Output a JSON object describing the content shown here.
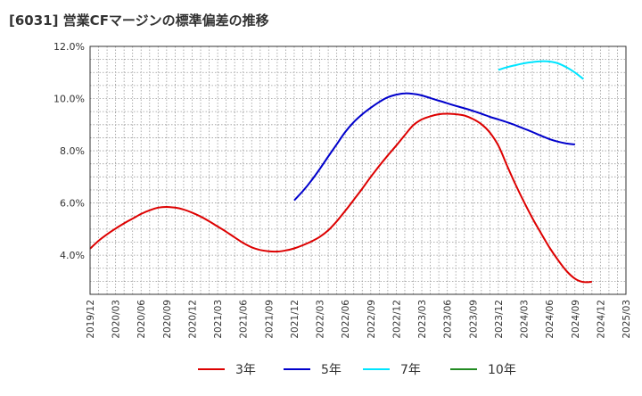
{
  "chart_data": {
    "type": "line",
    "title": "[6031]  営業CFマージンの標準偏差の推移",
    "xlabel": "",
    "ylabel": "",
    "ylim": [
      2.5,
      12.0
    ],
    "y_ticks": [
      4.0,
      6.0,
      8.0,
      10.0,
      12.0
    ],
    "y_tick_labels": [
      "4.0%",
      "6.0%",
      "8.0%",
      "10.0%",
      "12.0%"
    ],
    "x_tick_labels": [
      "2019/12",
      "2020/03",
      "2020/06",
      "2020/09",
      "2020/12",
      "2021/03",
      "2021/06",
      "2021/09",
      "2021/12",
      "2022/03",
      "2022/06",
      "2022/09",
      "2022/12",
      "2023/03",
      "2023/06",
      "2023/09",
      "2023/12",
      "2024/03",
      "2024/06",
      "2024/09",
      "2024/12",
      "2025/03"
    ],
    "grid": true,
    "legend_position": "bottom",
    "series": [
      {
        "name": "3年",
        "color": "#dd0000",
        "points": [
          [
            "2019/12",
            4.25
          ],
          [
            "2020/01",
            4.55
          ],
          [
            "2020/02",
            4.8
          ],
          [
            "2020/03",
            5.02
          ],
          [
            "2020/04",
            5.22
          ],
          [
            "2020/05",
            5.4
          ],
          [
            "2020/06",
            5.58
          ],
          [
            "2020/07",
            5.72
          ],
          [
            "2020/08",
            5.82
          ],
          [
            "2020/09",
            5.85
          ],
          [
            "2020/10",
            5.82
          ],
          [
            "2020/11",
            5.75
          ],
          [
            "2020/12",
            5.63
          ],
          [
            "2021/01",
            5.48
          ],
          [
            "2021/02",
            5.3
          ],
          [
            "2021/03",
            5.1
          ],
          [
            "2021/04",
            4.9
          ],
          [
            "2021/05",
            4.68
          ],
          [
            "2021/06",
            4.47
          ],
          [
            "2021/07",
            4.3
          ],
          [
            "2021/08",
            4.2
          ],
          [
            "2021/09",
            4.15
          ],
          [
            "2021/10",
            4.14
          ],
          [
            "2021/11",
            4.18
          ],
          [
            "2021/12",
            4.26
          ],
          [
            "2022/01",
            4.38
          ],
          [
            "2022/02",
            4.52
          ],
          [
            "2022/03",
            4.7
          ],
          [
            "2022/04",
            4.95
          ],
          [
            "2022/05",
            5.3
          ],
          [
            "2022/06",
            5.7
          ],
          [
            "2022/07",
            6.12
          ],
          [
            "2022/08",
            6.55
          ],
          [
            "2022/09",
            7.0
          ],
          [
            "2022/10",
            7.42
          ],
          [
            "2022/11",
            7.82
          ],
          [
            "2022/12",
            8.2
          ],
          [
            "2023/01",
            8.6
          ],
          [
            "2023/02",
            8.98
          ],
          [
            "2023/03",
            9.2
          ],
          [
            "2023/04",
            9.32
          ],
          [
            "2023/05",
            9.4
          ],
          [
            "2023/06",
            9.42
          ],
          [
            "2023/07",
            9.4
          ],
          [
            "2023/08",
            9.35
          ],
          [
            "2023/09",
            9.22
          ],
          [
            "2023/10",
            9.02
          ],
          [
            "2023/11",
            8.7
          ],
          [
            "2023/12",
            8.2
          ],
          [
            "2024/01",
            7.45
          ],
          [
            "2024/02",
            6.72
          ],
          [
            "2024/03",
            6.05
          ],
          [
            "2024/04",
            5.42
          ],
          [
            "2024/05",
            4.85
          ],
          [
            "2024/06",
            4.3
          ],
          [
            "2024/07",
            3.82
          ],
          [
            "2024/08",
            3.4
          ],
          [
            "2024/09",
            3.1
          ],
          [
            "2024/10",
            2.97
          ],
          [
            "2024/11",
            2.98
          ]
        ]
      },
      {
        "name": "5年",
        "color": "#0000cc",
        "points": [
          [
            "2021/12",
            6.1
          ],
          [
            "2022/01",
            6.45
          ],
          [
            "2022/02",
            6.85
          ],
          [
            "2022/03",
            7.3
          ],
          [
            "2022/04",
            7.78
          ],
          [
            "2022/05",
            8.25
          ],
          [
            "2022/06",
            8.72
          ],
          [
            "2022/07",
            9.1
          ],
          [
            "2022/08",
            9.4
          ],
          [
            "2022/09",
            9.65
          ],
          [
            "2022/10",
            9.87
          ],
          [
            "2022/11",
            10.05
          ],
          [
            "2022/12",
            10.15
          ],
          [
            "2023/01",
            10.2
          ],
          [
            "2023/02",
            10.18
          ],
          [
            "2023/03",
            10.12
          ],
          [
            "2023/04",
            10.02
          ],
          [
            "2023/05",
            9.92
          ],
          [
            "2023/06",
            9.82
          ],
          [
            "2023/07",
            9.72
          ],
          [
            "2023/08",
            9.63
          ],
          [
            "2023/09",
            9.53
          ],
          [
            "2023/10",
            9.42
          ],
          [
            "2023/11",
            9.3
          ],
          [
            "2023/12",
            9.2
          ],
          [
            "2024/01",
            9.1
          ],
          [
            "2024/02",
            8.98
          ],
          [
            "2024/03",
            8.85
          ],
          [
            "2024/04",
            8.72
          ],
          [
            "2024/05",
            8.58
          ],
          [
            "2024/06",
            8.45
          ],
          [
            "2024/07",
            8.35
          ],
          [
            "2024/08",
            8.28
          ],
          [
            "2024/09",
            8.24
          ]
        ]
      },
      {
        "name": "7年",
        "color": "#00e5ff",
        "points": [
          [
            "2023/12",
            11.1
          ],
          [
            "2024/01",
            11.2
          ],
          [
            "2024/02",
            11.28
          ],
          [
            "2024/03",
            11.35
          ],
          [
            "2024/04",
            11.4
          ],
          [
            "2024/05",
            11.43
          ],
          [
            "2024/06",
            11.42
          ],
          [
            "2024/07",
            11.35
          ],
          [
            "2024/08",
            11.2
          ],
          [
            "2024/09",
            11.0
          ],
          [
            "2024/10",
            10.75
          ]
        ]
      },
      {
        "name": "10年",
        "color": "#228b22",
        "points": []
      }
    ]
  }
}
